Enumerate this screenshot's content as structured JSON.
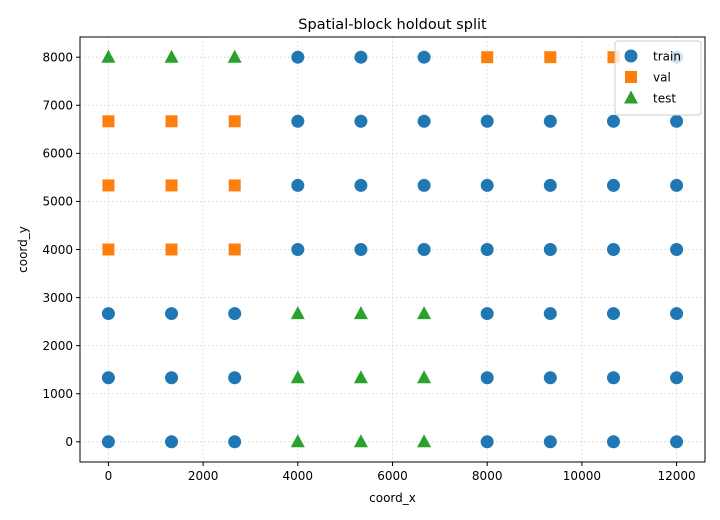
{
  "chart_data": {
    "type": "scatter",
    "title": "Spatial-block holdout split",
    "xlabel": "coord_x",
    "ylabel": "coord_y",
    "xlim": [
      -600,
      12600
    ],
    "ylim": [
      -420,
      8420
    ],
    "xticks": [
      0,
      2000,
      4000,
      6000,
      8000,
      10000,
      12000
    ],
    "yticks": [
      0,
      1000,
      2000,
      3000,
      4000,
      5000,
      6000,
      7000,
      8000
    ],
    "grid": true,
    "legend_position": "top-right",
    "series": [
      {
        "name": "train",
        "marker": "circle",
        "color": "#1f77b4",
        "points": [
          [
            4000,
            8000
          ],
          [
            5333,
            8000
          ],
          [
            6667,
            8000
          ],
          [
            12000,
            8000
          ],
          [
            4000,
            6667
          ],
          [
            5333,
            6667
          ],
          [
            6667,
            6667
          ],
          [
            8000,
            6667
          ],
          [
            9333,
            6667
          ],
          [
            10667,
            6667
          ],
          [
            12000,
            6667
          ],
          [
            4000,
            5333
          ],
          [
            5333,
            5333
          ],
          [
            6667,
            5333
          ],
          [
            8000,
            5333
          ],
          [
            9333,
            5333
          ],
          [
            10667,
            5333
          ],
          [
            12000,
            5333
          ],
          [
            4000,
            4000
          ],
          [
            5333,
            4000
          ],
          [
            6667,
            4000
          ],
          [
            8000,
            4000
          ],
          [
            9333,
            4000
          ],
          [
            10667,
            4000
          ],
          [
            12000,
            4000
          ],
          [
            0,
            2667
          ],
          [
            1333,
            2667
          ],
          [
            2667,
            2667
          ],
          [
            8000,
            2667
          ],
          [
            9333,
            2667
          ],
          [
            10667,
            2667
          ],
          [
            12000,
            2667
          ],
          [
            0,
            1333
          ],
          [
            1333,
            1333
          ],
          [
            2667,
            1333
          ],
          [
            8000,
            1333
          ],
          [
            9333,
            1333
          ],
          [
            10667,
            1333
          ],
          [
            12000,
            1333
          ],
          [
            0,
            0
          ],
          [
            1333,
            0
          ],
          [
            2667,
            0
          ],
          [
            8000,
            0
          ],
          [
            9333,
            0
          ],
          [
            10667,
            0
          ],
          [
            12000,
            0
          ]
        ]
      },
      {
        "name": "val",
        "marker": "square",
        "color": "#ff7f0e",
        "points": [
          [
            8000,
            8000
          ],
          [
            9333,
            8000
          ],
          [
            10667,
            8000
          ],
          [
            0,
            6667
          ],
          [
            1333,
            6667
          ],
          [
            2667,
            6667
          ],
          [
            0,
            5333
          ],
          [
            1333,
            5333
          ],
          [
            2667,
            5333
          ],
          [
            0,
            4000
          ],
          [
            1333,
            4000
          ],
          [
            2667,
            4000
          ]
        ]
      },
      {
        "name": "test",
        "marker": "triangle",
        "color": "#2ca02c",
        "points": [
          [
            0,
            8000
          ],
          [
            1333,
            8000
          ],
          [
            2667,
            8000
          ],
          [
            4000,
            2667
          ],
          [
            5333,
            2667
          ],
          [
            6667,
            2667
          ],
          [
            4000,
            1333
          ],
          [
            5333,
            1333
          ],
          [
            6667,
            1333
          ],
          [
            4000,
            0
          ],
          [
            5333,
            0
          ],
          [
            6667,
            0
          ]
        ]
      }
    ]
  }
}
